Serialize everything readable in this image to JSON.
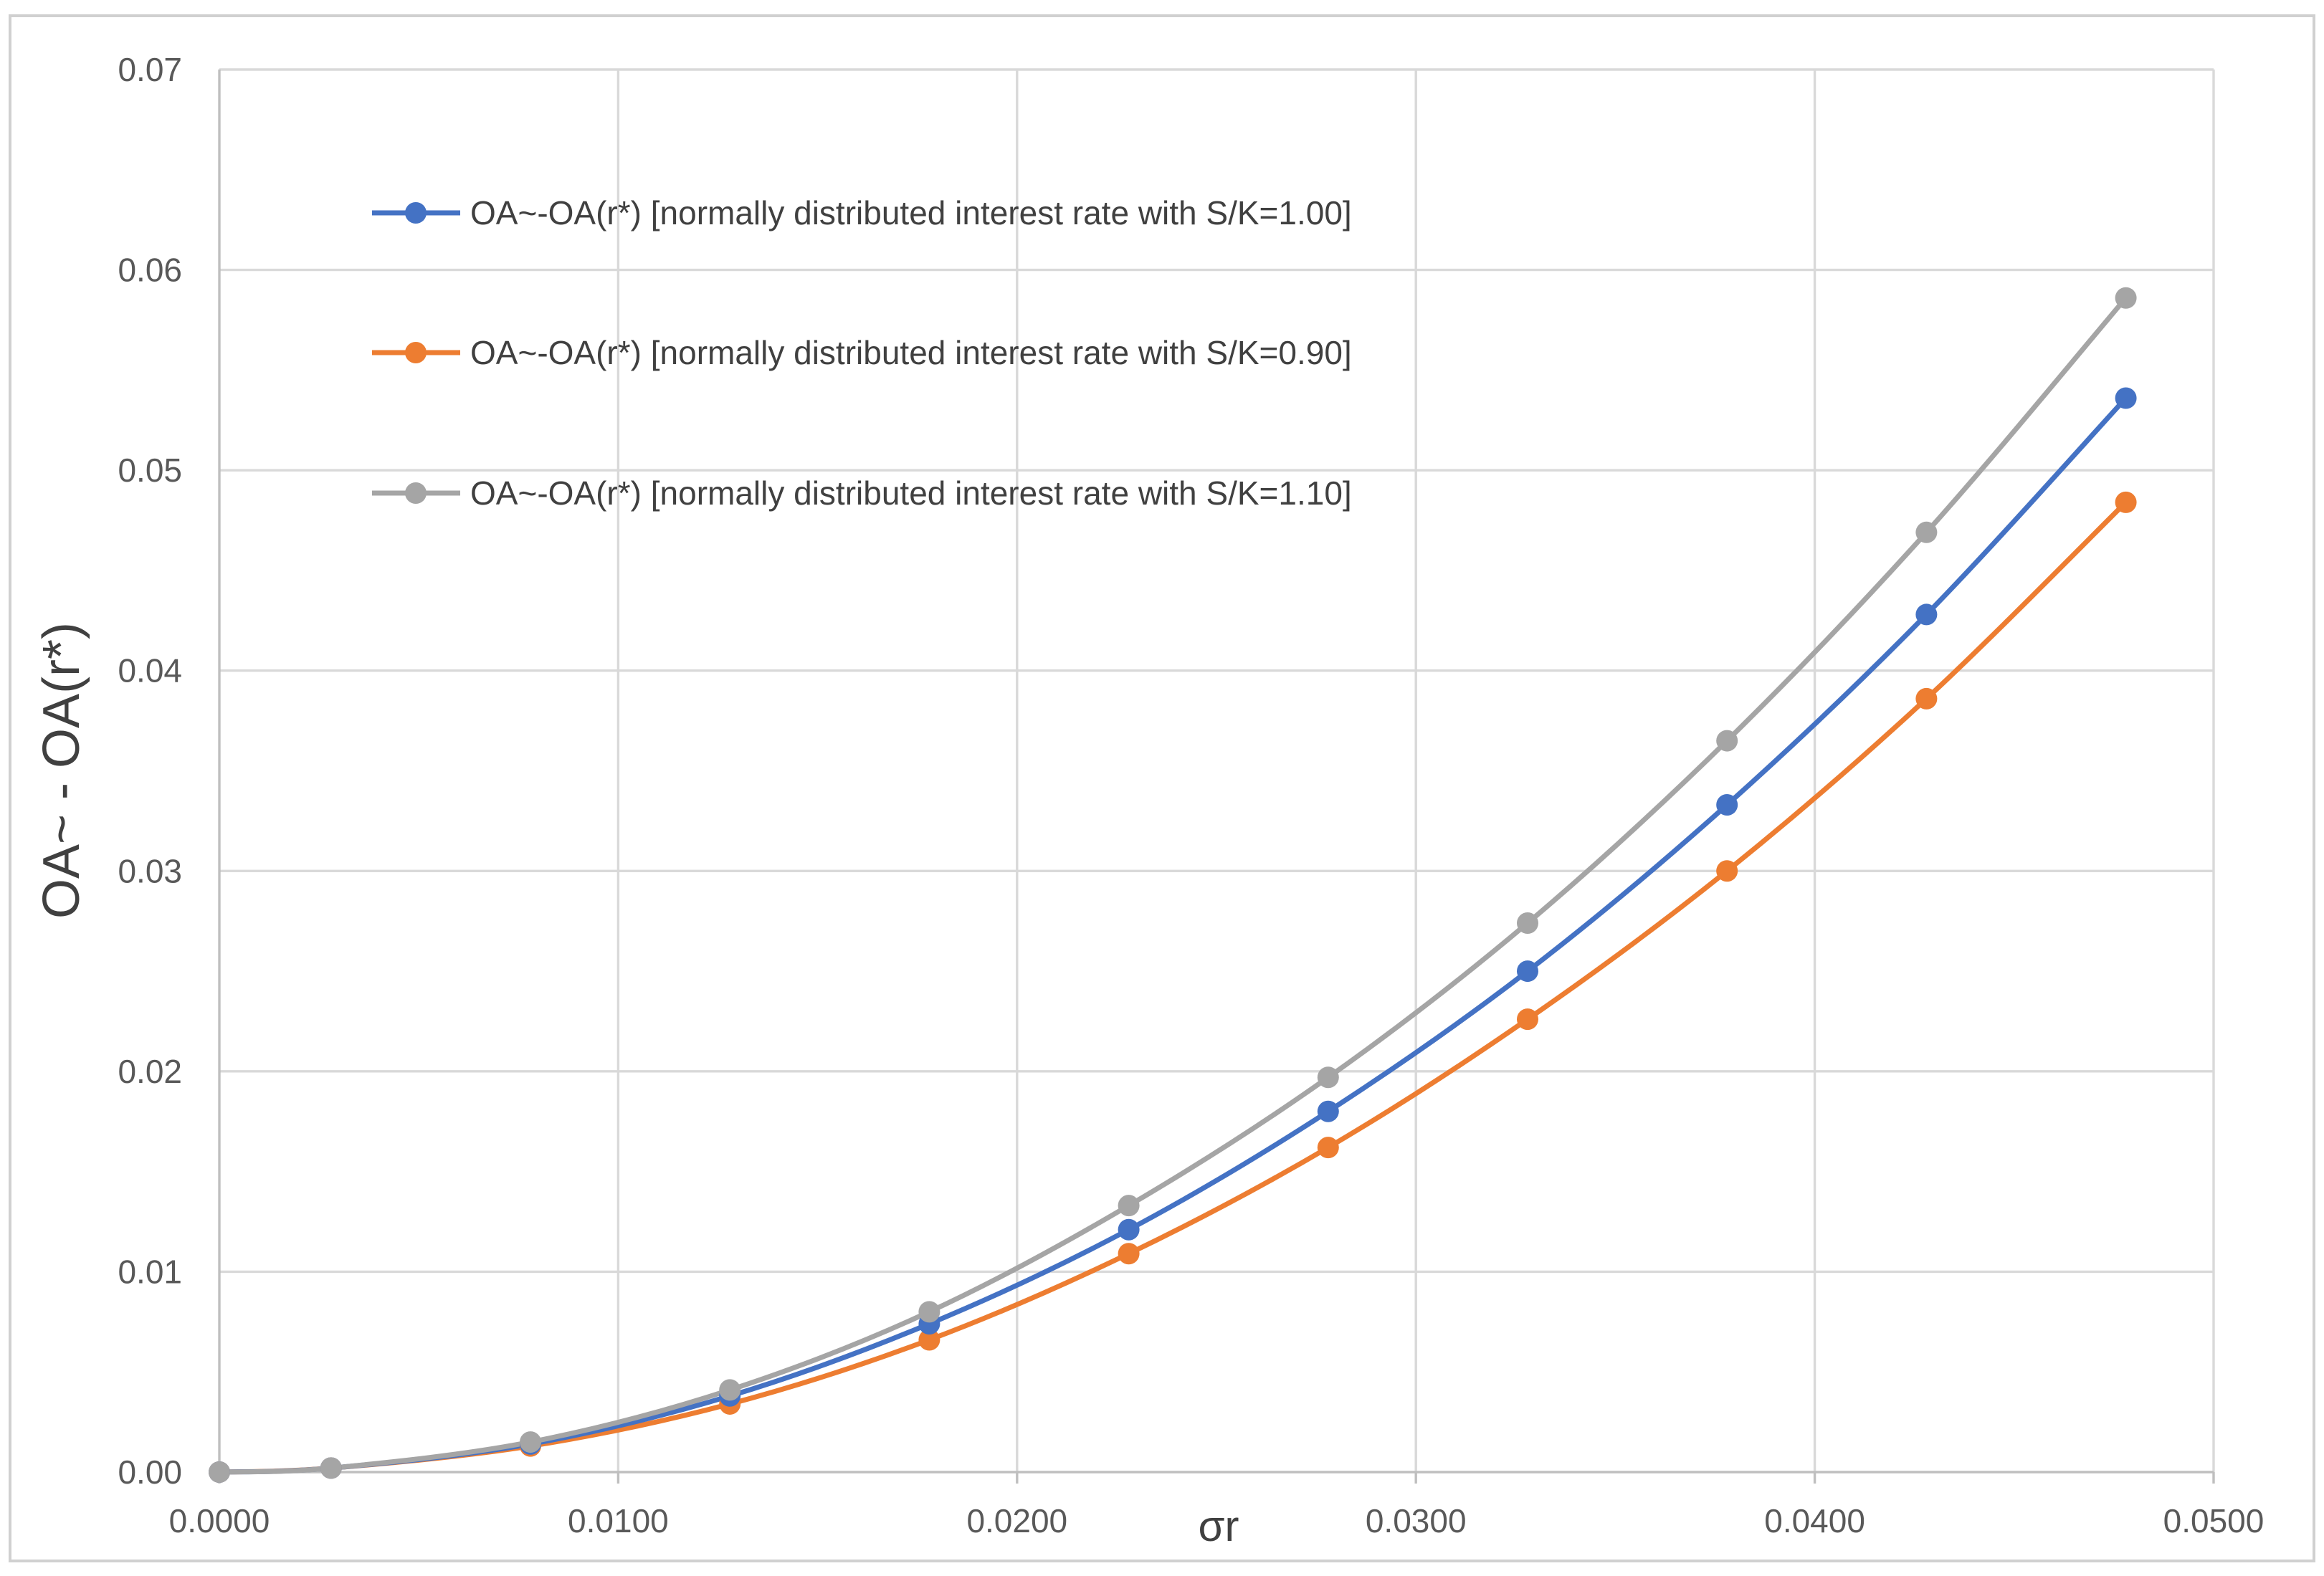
{
  "chart_data": {
    "type": "line",
    "title": "",
    "xlabel": "σr",
    "ylabel": "OA~ - OA(r*)",
    "xlim": [
      0,
      0.05
    ],
    "ylim": [
      0,
      0.07
    ],
    "x_ticks": [
      "0.0000",
      "0.0100",
      "0.0200",
      "0.0300",
      "0.0400",
      "0.0500"
    ],
    "y_ticks": [
      "0.00",
      "0.01",
      "0.02",
      "0.03",
      "0.04",
      "0.05",
      "0.06",
      "0.07"
    ],
    "grid": true,
    "legend_position": "top-left",
    "x": [
      0.0,
      0.0028,
      0.0078,
      0.0128,
      0.0178,
      0.0228,
      0.0278,
      0.0328,
      0.0378,
      0.0428,
      0.0478
    ],
    "series": [
      {
        "name": "OA~-OA(r*) [normally distributed interest rate with S/K=1.00]",
        "color": "#4472c4",
        "values": [
          0.0,
          0.0002,
          0.0014,
          0.0038,
          0.0074,
          0.0121,
          0.018,
          0.025,
          0.0333,
          0.0428,
          0.0536
        ]
      },
      {
        "name": "OA~-OA(r*) [normally distributed interest rate with S/K=0.90]",
        "color": "#ed7d31",
        "values": [
          0.0,
          0.0002,
          0.0013,
          0.0034,
          0.0066,
          0.0109,
          0.0162,
          0.0226,
          0.03,
          0.0386,
          0.0484
        ]
      },
      {
        "name": "OA~-OA(r*) [normally distributed interest rate with S/K=1.10]",
        "color": "#a5a5a5",
        "values": [
          0.0,
          0.0002,
          0.0015,
          0.0041,
          0.008,
          0.0133,
          0.0197,
          0.0274,
          0.0365,
          0.0469,
          0.0586
        ]
      }
    ]
  }
}
